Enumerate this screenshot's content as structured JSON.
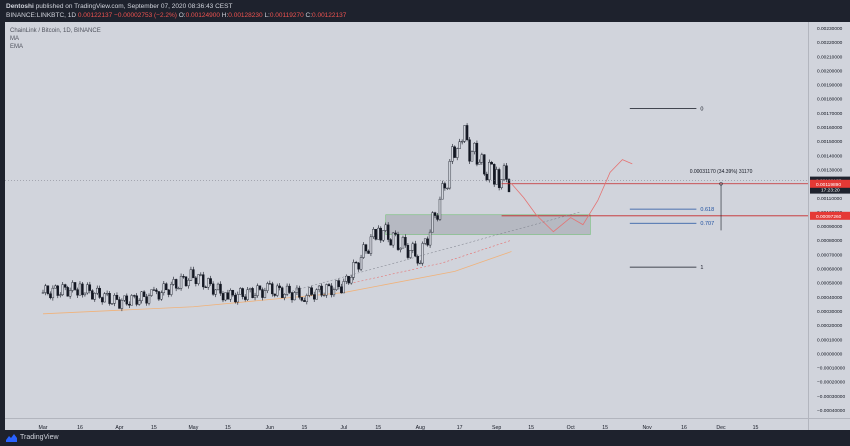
{
  "header": {
    "publisher": "Dentoshi",
    "published_text": "published on TradingView.com, September 07, 2020 08:36:43 CEST",
    "symbol": "BINANCE:LINKBTC, 1D",
    "last": "0.00122137",
    "change": "−0.00002753 (−2.2%)",
    "open_label": "O:",
    "open": "0.00124900",
    "high_label": "H:",
    "high": "0.00128230",
    "low_label": "L:",
    "low": "0.00119270",
    "close_label": "C:",
    "close": "0.00122137"
  },
  "legend": {
    "title": "ChainLink / Bitcoin, 1D, BINANCE",
    "ma": "MA",
    "ema": "EMA"
  },
  "price_scale": {
    "ticks": [
      "0.00230000",
      "0.00220000",
      "0.00210000",
      "0.00200000",
      "0.00190000",
      "0.00180000",
      "0.00170000",
      "0.00160000",
      "0.00150000",
      "0.00140000",
      "0.00130000",
      "0.00120000",
      "0.00110000",
      "0.00100000",
      "0.00090000",
      "0.00080000",
      "0.00070000",
      "0.00060000",
      "0.00050000",
      "0.00040000",
      "0.00030000",
      "0.00020000",
      "0.00010000",
      "0.00000000",
      "−0.00010000",
      "−0.00020000",
      "−0.00030000",
      "−0.00040000"
    ],
    "last_price_label": "0.00122137",
    "countdown_label": "17:23:20",
    "upper_level_label": "0.00119890",
    "lower_level_label": "0.00097260",
    "colors": {
      "last": "#1e222d",
      "level": "#e53935"
    }
  },
  "time_scale": {
    "ticks": [
      "Mar",
      "16",
      "Apr",
      "15",
      "May",
      "15",
      "Jun",
      "15",
      "Jul",
      "15",
      "Aug",
      "17",
      "Sep",
      "15",
      "Oct",
      "15",
      "Nov",
      "16",
      "Dec",
      "15"
    ]
  },
  "annotations": {
    "fib_0": "0",
    "fib_0618": "0.618",
    "fib_0707": "0.707",
    "fib_1": "1",
    "measure": "0.00031170 (34.39%) 31170",
    "fib_color": "#1e4fa0"
  },
  "chart_data": {
    "type": "candlestick",
    "title": "ChainLink / Bitcoin, 1D, BINANCE",
    "ylim": [
      -0.0004,
      0.0023
    ],
    "y_unit": "BTC",
    "x_range": [
      "2020-03-01",
      "2020-12-31"
    ],
    "close_series": {
      "dates": [
        "2020-03-01",
        "2020-03-16",
        "2020-04-01",
        "2020-04-15",
        "2020-05-01",
        "2020-05-15",
        "2020-06-01",
        "2020-06-15",
        "2020-07-01",
        "2020-07-15",
        "2020-08-01",
        "2020-08-10",
        "2020-08-17",
        "2020-08-25",
        "2020-09-01",
        "2020-09-07"
      ],
      "values": [
        0.00043,
        0.00046,
        0.00036,
        0.00041,
        0.00055,
        0.0004,
        0.00045,
        0.00041,
        0.00048,
        0.00088,
        0.00068,
        0.00112,
        0.00158,
        0.00133,
        0.00126,
        0.00122
      ]
    },
    "horizontal_levels": [
      {
        "label": "upper",
        "value": 0.0011989
      },
      {
        "label": "lower",
        "value": 0.0009726
      },
      {
        "label": "0",
        "value": 0.00173
      },
      {
        "label": "0.618",
        "value": 0.00102
      },
      {
        "label": "0.707",
        "value": 0.00092
      },
      {
        "label": "1",
        "value": 0.00061
      }
    ],
    "support_zone": {
      "from": 0.00084,
      "to": 0.00098
    },
    "grid": false
  },
  "footer": {
    "brand": "TradingView"
  }
}
